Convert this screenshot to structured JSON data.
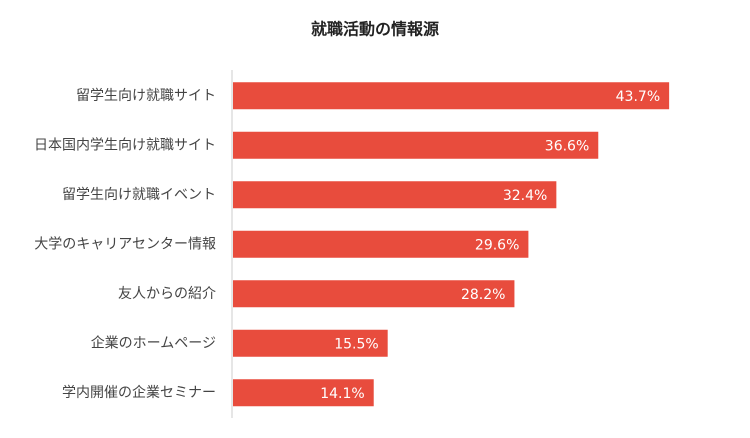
{
  "chart_data": {
    "type": "hbar",
    "title": "就職活動の情報源",
    "categories": [
      "留学生向け就職サイト",
      "日本国内学生向け就職サイト",
      "留学生向け就職イベント",
      "大学のキャリアセンター情報",
      "友人からの紹介",
      "企業のホームページ",
      "学内開催の企業セミナー"
    ],
    "values": [
      43.7,
      36.6,
      32.4,
      29.6,
      28.2,
      15.5,
      14.1
    ],
    "value_labels": [
      "43.7%",
      "36.6%",
      "32.4%",
      "29.6%",
      "28.2%",
      "15.5%",
      "14.1%"
    ],
    "color": "#e84c3d"
  }
}
